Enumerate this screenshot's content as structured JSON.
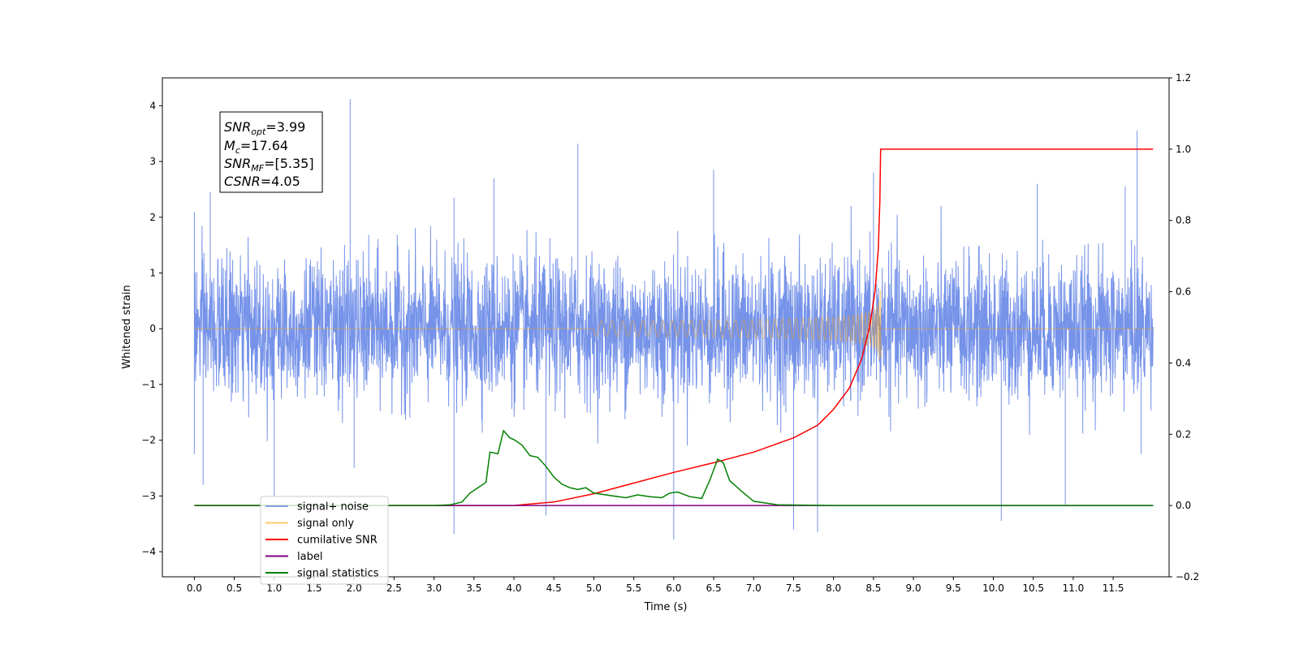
{
  "chart_data": {
    "type": "line",
    "xlabel": "Time (s)",
    "ylabel": "Whitened strain",
    "xlim": [
      -0.4,
      12.2
    ],
    "ylim": [
      -4.45,
      4.5
    ],
    "y2lim": [
      -0.2,
      1.2
    ],
    "x_ticks": [
      "0.0",
      "0.5",
      "1.0",
      "1.5",
      "2.0",
      "2.5",
      "3.0",
      "3.5",
      "4.0",
      "4.5",
      "5.0",
      "5.5",
      "6.0",
      "6.5",
      "7.0",
      "7.5",
      "8.0",
      "8.5",
      "9.0",
      "9.5",
      "10.0",
      "10.5",
      "11.0",
      "11.5"
    ],
    "y_ticks": [
      "4",
      "3",
      "2",
      "1",
      "0",
      "−1",
      "−2",
      "−3",
      "−4"
    ],
    "y2_ticks": [
      "1.2",
      "1.0",
      "0.8",
      "0.6",
      "0.4",
      "0.2",
      "0.0",
      "−0.2"
    ],
    "annotation": [
      "=3.99",
      "=17.64",
      "=[5.35]",
      "=4.05"
    ],
    "annotation_symbols": [
      {
        "main": "SNR",
        "sub": "opt"
      },
      {
        "main": "M",
        "sub": "c"
      },
      {
        "main": "SNR",
        "sub": "MF"
      },
      {
        "main": "CSNR",
        "sub": ""
      }
    ],
    "legend_position": "lower-left",
    "legend": [
      {
        "name": "signal+ noise",
        "color": "#4169e1"
      },
      {
        "name": "signal only",
        "color": "#ffa500"
      },
      {
        "name": "cumilative SNR",
        "color": "#ff0000"
      },
      {
        "name": "label",
        "color": "#800080"
      },
      {
        "name": "signal statistics",
        "color": "#008000"
      }
    ],
    "series": [
      {
        "name": "signal+ noise",
        "axis": "left",
        "color": "#4169e1",
        "alpha": 0.72,
        "description_values": {
          "t_start": 0.0,
          "t_end": 12.0,
          "typical_amplitude": 1.0
        },
        "spikes": [
          [
            0.0,
            2.1
          ],
          [
            0.0,
            -2.25
          ],
          [
            0.11,
            -2.8
          ],
          [
            0.2,
            2.45
          ],
          [
            1.0,
            -3.0
          ],
          [
            1.95,
            4.12
          ],
          [
            2.0,
            -2.5
          ],
          [
            3.25,
            -3.68
          ],
          [
            3.25,
            2.35
          ],
          [
            3.75,
            2.7
          ],
          [
            4.4,
            -3.35
          ],
          [
            4.8,
            3.32
          ],
          [
            6.0,
            -3.78
          ],
          [
            6.5,
            2.85
          ],
          [
            7.5,
            -3.6
          ],
          [
            7.8,
            -3.65
          ],
          [
            8.5,
            2.8
          ],
          [
            10.1,
            -3.45
          ],
          [
            10.55,
            2.6
          ],
          [
            10.9,
            -3.15
          ],
          [
            11.8,
            3.55
          ],
          [
            11.65,
            2.55
          ],
          [
            11.85,
            -2.25
          ]
        ]
      },
      {
        "name": "signal only",
        "axis": "left",
        "color": "#ffa500",
        "alpha": 0.45,
        "chirp": {
          "t_merger": 8.59,
          "peak_amplitude": 0.7
        }
      },
      {
        "name": "cumilative SNR",
        "axis": "right",
        "color": "#ff0000",
        "points": [
          [
            0.0,
            0.0
          ],
          [
            3.0,
            0.0
          ],
          [
            4.0,
            0.0
          ],
          [
            4.5,
            0.01
          ],
          [
            5.0,
            0.033
          ],
          [
            5.5,
            0.063
          ],
          [
            6.0,
            0.093
          ],
          [
            6.5,
            0.12
          ],
          [
            7.0,
            0.15
          ],
          [
            7.5,
            0.19
          ],
          [
            7.8,
            0.225
          ],
          [
            8.0,
            0.27
          ],
          [
            8.2,
            0.33
          ],
          [
            8.35,
            0.41
          ],
          [
            8.45,
            0.5
          ],
          [
            8.52,
            0.6
          ],
          [
            8.56,
            0.72
          ],
          [
            8.58,
            0.85
          ],
          [
            8.59,
            1.0
          ],
          [
            12.0,
            1.0
          ]
        ]
      },
      {
        "name": "label",
        "axis": "right",
        "color": "#800080",
        "points": [
          [
            0.0,
            0.0
          ],
          [
            12.0,
            0.0
          ]
        ]
      },
      {
        "name": "signal statistics",
        "axis": "right",
        "color": "#008000",
        "points": [
          [
            0.0,
            0.0
          ],
          [
            3.0,
            0.0
          ],
          [
            3.2,
            0.002
          ],
          [
            3.35,
            0.01
          ],
          [
            3.45,
            0.035
          ],
          [
            3.55,
            0.05
          ],
          [
            3.65,
            0.065
          ],
          [
            3.7,
            0.15
          ],
          [
            3.8,
            0.145
          ],
          [
            3.87,
            0.21
          ],
          [
            3.95,
            0.19
          ],
          [
            4.0,
            0.185
          ],
          [
            4.1,
            0.17
          ],
          [
            4.2,
            0.14
          ],
          [
            4.3,
            0.135
          ],
          [
            4.4,
            0.11
          ],
          [
            4.5,
            0.08
          ],
          [
            4.6,
            0.06
          ],
          [
            4.7,
            0.05
          ],
          [
            4.8,
            0.045
          ],
          [
            4.9,
            0.05
          ],
          [
            5.0,
            0.035
          ],
          [
            5.2,
            0.028
          ],
          [
            5.4,
            0.022
          ],
          [
            5.55,
            0.03
          ],
          [
            5.7,
            0.025
          ],
          [
            5.85,
            0.022
          ],
          [
            5.95,
            0.035
          ],
          [
            6.05,
            0.038
          ],
          [
            6.2,
            0.025
          ],
          [
            6.35,
            0.02
          ],
          [
            6.45,
            0.07
          ],
          [
            6.55,
            0.13
          ],
          [
            6.62,
            0.12
          ],
          [
            6.7,
            0.07
          ],
          [
            6.85,
            0.04
          ],
          [
            7.0,
            0.012
          ],
          [
            7.3,
            0.002
          ],
          [
            8.0,
            0.0
          ],
          [
            12.0,
            0.0
          ]
        ]
      }
    ]
  }
}
